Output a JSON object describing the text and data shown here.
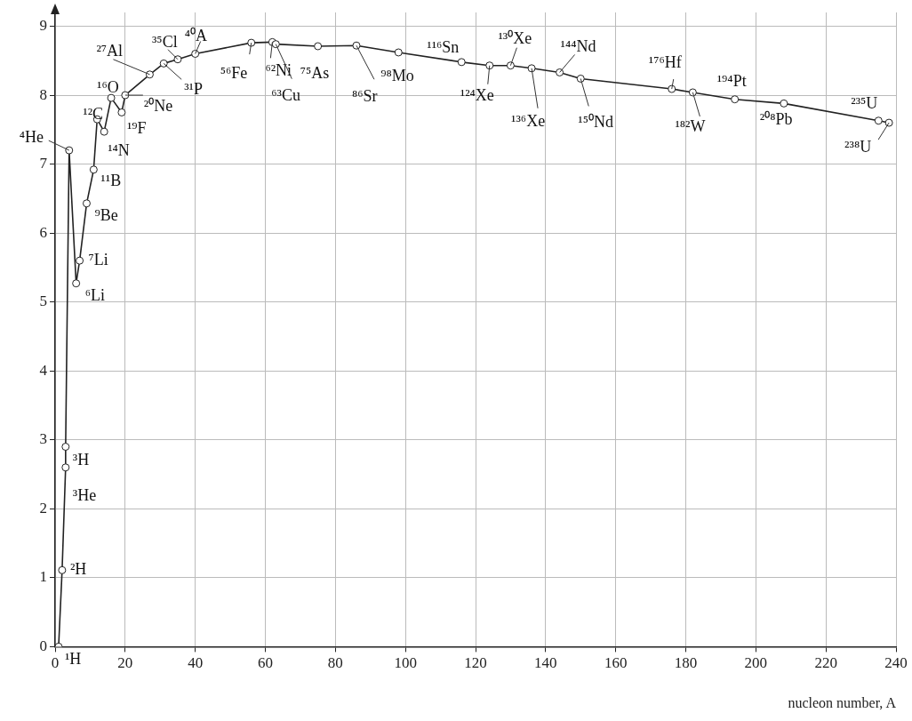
{
  "chart_data": {
    "type": "line",
    "xlabel": "nucleon number, A",
    "xlim": [
      0,
      240
    ],
    "xticks": [
      0,
      20,
      40,
      60,
      80,
      100,
      120,
      140,
      160,
      180,
      200,
      220,
      240
    ],
    "ylim": [
      0,
      9.2
    ],
    "yticks": [
      0,
      1,
      2,
      3,
      4,
      5,
      6,
      7,
      8,
      9
    ],
    "grid": true,
    "legend": false,
    "marker": "circle",
    "line_style": "solid",
    "series": [
      {
        "color": "#222222",
        "x": [
          1,
          2,
          3,
          3,
          4,
          6,
          7,
          9,
          11,
          12,
          14,
          16,
          19,
          20,
          27,
          31,
          35,
          40,
          56,
          62,
          63,
          75,
          86,
          98,
          116,
          124,
          130,
          136,
          144,
          150,
          176,
          182,
          194,
          208,
          235,
          238
        ],
        "values": [
          0,
          1.11,
          2.6,
          2.9,
          7.2,
          5.27,
          5.6,
          6.43,
          6.92,
          7.65,
          7.47,
          7.96,
          7.75,
          8.0,
          8.3,
          8.46,
          8.52,
          8.6,
          8.76,
          8.77,
          8.74,
          8.71,
          8.72,
          8.62,
          8.48,
          8.43,
          8.43,
          8.39,
          8.33,
          8.24,
          8.09,
          8.04,
          7.94,
          7.88,
          7.63,
          7.6
        ]
      }
    ],
    "annotations": [
      {
        "text": "¹H",
        "x": 1,
        "y": 0
      },
      {
        "text": "²H",
        "x": 2,
        "y": 1.11
      },
      {
        "text": "³He",
        "x": 3,
        "y": 2.6
      },
      {
        "text": "³H",
        "x": 3,
        "y": 2.9
      },
      {
        "text": "⁴He",
        "x": 4,
        "y": 7.2
      },
      {
        "text": "⁶Li",
        "x": 6,
        "y": 5.27
      },
      {
        "text": "⁷Li",
        "x": 7,
        "y": 5.6
      },
      {
        "text": "⁹Be",
        "x": 9,
        "y": 6.43
      },
      {
        "text": "¹¹B",
        "x": 11,
        "y": 6.92
      },
      {
        "text": "¹²C",
        "x": 12,
        "y": 7.65
      },
      {
        "text": "¹⁴N",
        "x": 14,
        "y": 7.47
      },
      {
        "text": "¹⁶O",
        "x": 16,
        "y": 7.96
      },
      {
        "text": "¹⁹F",
        "x": 19,
        "y": 7.75
      },
      {
        "text": "²⁰Ne",
        "x": 20,
        "y": 8.0
      },
      {
        "text": "²⁷Al",
        "x": 27,
        "y": 8.3
      },
      {
        "text": "³¹P",
        "x": 31,
        "y": 8.46
      },
      {
        "text": "³⁵Cl",
        "x": 35,
        "y": 8.52
      },
      {
        "text": "⁴⁰A",
        "x": 40,
        "y": 8.6
      },
      {
        "text": "⁵⁶Fe",
        "x": 56,
        "y": 8.76
      },
      {
        "text": "⁶²Ni",
        "x": 62,
        "y": 8.77
      },
      {
        "text": "⁶³Cu",
        "x": 63,
        "y": 8.74
      },
      {
        "text": "⁷⁵As",
        "x": 75,
        "y": 8.71
      },
      {
        "text": "⁸⁶Sr",
        "x": 86,
        "y": 8.72
      },
      {
        "text": "⁹⁸Mo",
        "x": 98,
        "y": 8.62
      },
      {
        "text": "¹¹⁶Sn",
        "x": 116,
        "y": 8.48
      },
      {
        "text": "¹²⁴Xe",
        "x": 124,
        "y": 8.43
      },
      {
        "text": "¹³⁰Xe",
        "x": 130,
        "y": 8.43
      },
      {
        "text": "¹³⁶Xe",
        "x": 136,
        "y": 8.39
      },
      {
        "text": "¹⁴⁴Nd",
        "x": 144,
        "y": 8.33
      },
      {
        "text": "¹⁵⁰Nd",
        "x": 150,
        "y": 8.24
      },
      {
        "text": "¹⁷⁶Hf",
        "x": 176,
        "y": 8.09
      },
      {
        "text": "¹⁸²W",
        "x": 182,
        "y": 8.04
      },
      {
        "text": "¹⁹⁴Pt",
        "x": 194,
        "y": 7.94
      },
      {
        "text": "²⁰⁸Pb",
        "x": 208,
        "y": 7.88
      },
      {
        "text": "²³⁵U",
        "x": 235,
        "y": 7.63
      },
      {
        "text": "²³⁸U",
        "x": 238,
        "y": 7.6
      }
    ]
  }
}
